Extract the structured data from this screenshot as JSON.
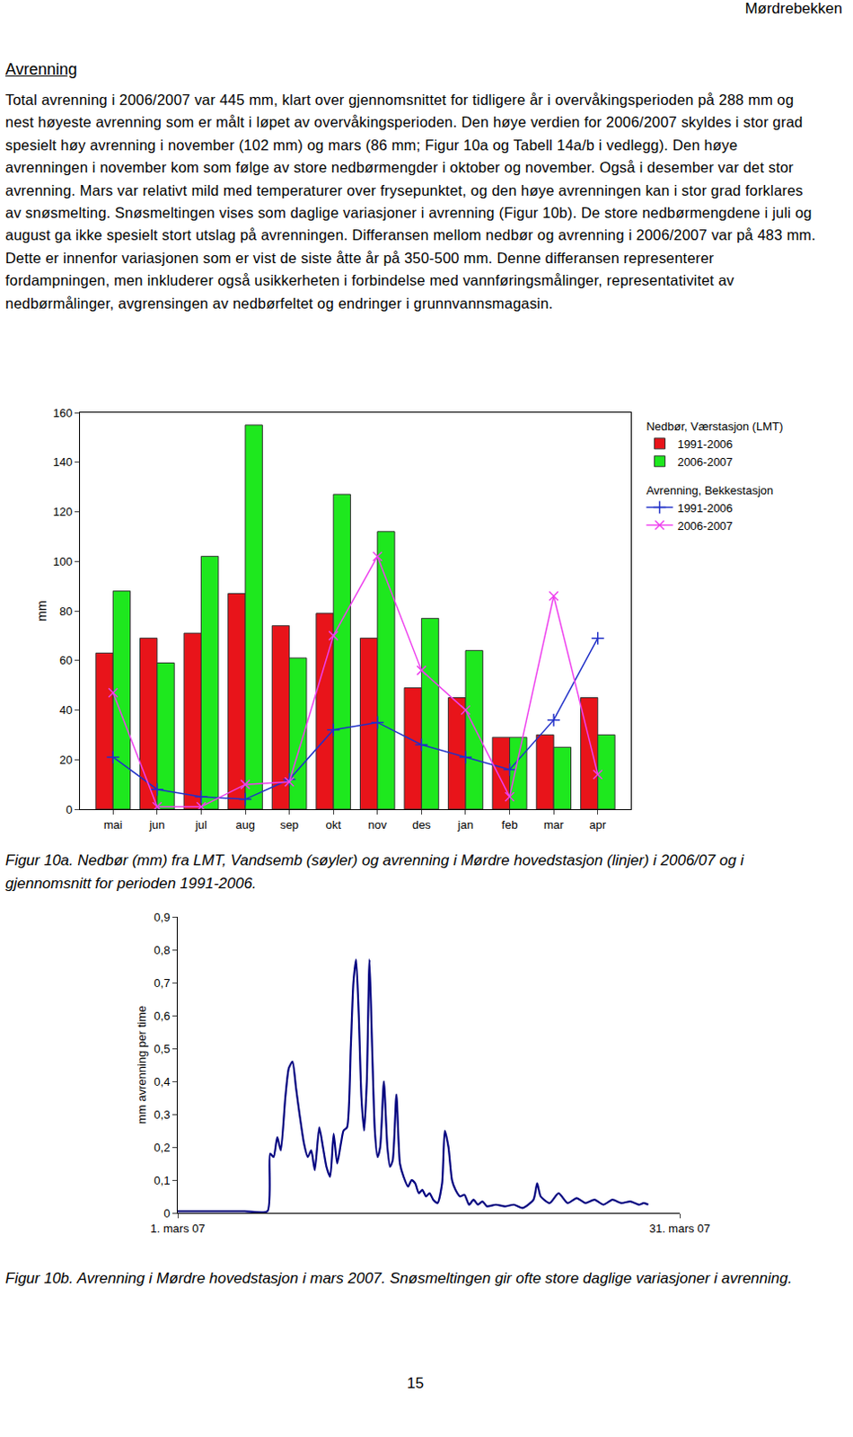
{
  "header": "Mørdrebekken",
  "section_title": "Avrenning",
  "paragraph": "Total avrenning i 2006/2007 var 445 mm, klart over gjennomsnittet for tidligere år i overvåkingsperioden på 288 mm og nest høyeste avrenning som er målt i løpet av overvåkingsperioden. Den høye verdien for 2006/2007 skyldes i stor grad spesielt høy avrenning i november (102 mm) og mars (86 mm; Figur 10a og Tabell 14a/b i vedlegg). Den høye avrenningen i november kom som følge av store nedbørmengder i oktober og november. Også i desember var det stor avrenning. Mars var relativt mild med temperaturer over frysepunktet, og den høye avrenningen kan i stor grad forklares av snøsmelting. Snøsmeltingen vises som daglige variasjoner i avrenning (Figur 10b). De store nedbørmengdene i juli og august ga ikke spesielt stort utslag på avrenningen. Differansen mellom nedbør og avrenning i 2006/2007 var på 483 mm. Dette er innenfor variasjonen som er vist de siste åtte år på 350-500 mm. Denne differansen representerer fordampningen, men inkluderer også usikkerheten i forbindelse med vannføringsmålinger, representativitet av nedbørmålinger, avgrensingen av nedbørfeltet og endringer i grunnvannsmagasin.",
  "chart_data": [
    {
      "type": "bar",
      "caption": "Figur 10a. Nedbør (mm) fra LMT, Vandsemb (søyler) og avrenning i Mørdre hovedstasjon (linjer) i 2006/07 og i gjennomsnitt for perioden 1991-2006.",
      "ylabel": "mm",
      "categories": [
        "mai",
        "jun",
        "jul",
        "aug",
        "sep",
        "okt",
        "nov",
        "des",
        "jan",
        "feb",
        "mar",
        "apr"
      ],
      "series": [
        {
          "name": "1991-2006",
          "group": "Nedbør, Værstasjon (LMT)",
          "type": "bar",
          "color": "#e8141a",
          "values": [
            63,
            69,
            71,
            87,
            74,
            79,
            69,
            49,
            45,
            29,
            30,
            45
          ]
        },
        {
          "name": "2006-2007",
          "group": "Nedbør, Værstasjon (LMT)",
          "type": "bar",
          "color": "#1ee81e",
          "values": [
            88,
            59,
            102,
            155,
            61,
            127,
            112,
            77,
            64,
            29,
            25,
            30
          ]
        },
        {
          "name": "1991-2006",
          "group": "Avrenning, Bekkestasjon",
          "type": "line",
          "color": "#2030c8",
          "marker": "cross-thin",
          "values": [
            21,
            8,
            5,
            4,
            12,
            32,
            35,
            26,
            21,
            16,
            36,
            69
          ]
        },
        {
          "name": "2006-2007",
          "group": "Avrenning, Bekkestasjon",
          "type": "line",
          "color": "#ee40ee",
          "marker": "x-thin",
          "values": [
            47,
            1,
            1,
            10,
            11,
            70,
            102,
            56,
            40,
            5,
            86,
            14
          ]
        }
      ],
      "ylim": [
        0,
        160
      ],
      "yticks": [
        0,
        20,
        40,
        60,
        80,
        100,
        120,
        140,
        160
      ],
      "grid": false,
      "legend": "right"
    },
    {
      "type": "line",
      "caption": "Figur 10b. Avrenning i Mørdre hovedstasjon i mars 2007. Snøsmeltingen gir ofte store daglige variasjoner i avrenning.",
      "ylabel": "mm avrenning per time",
      "color": "#000080",
      "x": [
        1,
        3,
        5,
        6.36,
        6.52,
        6.73,
        6.95,
        7.16,
        7.43,
        7.64,
        7.86,
        8.07,
        8.28,
        8.55,
        8.77,
        8.98,
        9.19,
        9.46,
        9.68,
        9.89,
        10.11,
        10.32,
        10.53,
        10.75,
        10.91,
        11.12,
        11.34,
        11.5,
        11.66,
        11.82,
        11.98,
        12.14,
        12.3,
        12.46,
        12.62,
        12.78,
        12.94,
        13.1,
        13.32,
        13.53,
        13.69,
        13.85,
        14.07,
        14.28,
        14.5,
        14.77,
        14.98,
        15.19,
        15.41,
        15.62,
        15.84,
        16.05,
        16.27,
        16.53,
        16.8,
        16.96,
        17.18,
        17.39,
        17.6,
        17.87,
        18.14,
        18.41,
        18.68,
        18.94,
        19.21,
        19.48,
        20.01,
        20.55,
        21.09,
        21.62,
        22.26,
        22.48,
        22.69,
        23.23,
        23.76,
        24.3,
        24.84,
        25.37,
        25.91,
        26.44,
        26.98,
        27.51,
        28.05,
        28.58,
        28.85,
        29.12
      ],
      "values": [
        0.005,
        0.005,
        0.005,
        0.005,
        0.18,
        0.17,
        0.23,
        0.19,
        0.35,
        0.44,
        0.46,
        0.38,
        0.3,
        0.21,
        0.17,
        0.19,
        0.13,
        0.26,
        0.2,
        0.14,
        0.11,
        0.24,
        0.15,
        0.21,
        0.25,
        0.26,
        0.5,
        0.7,
        0.77,
        0.6,
        0.35,
        0.25,
        0.4,
        0.77,
        0.5,
        0.25,
        0.17,
        0.2,
        0.4,
        0.2,
        0.14,
        0.16,
        0.36,
        0.15,
        0.11,
        0.08,
        0.1,
        0.09,
        0.06,
        0.07,
        0.05,
        0.06,
        0.04,
        0.03,
        0.09,
        0.25,
        0.2,
        0.1,
        0.07,
        0.05,
        0.055,
        0.025,
        0.04,
        0.025,
        0.035,
        0.02,
        0.025,
        0.02,
        0.025,
        0.015,
        0.04,
        0.09,
        0.05,
        0.03,
        0.06,
        0.03,
        0.045,
        0.03,
        0.04,
        0.025,
        0.04,
        0.03,
        0.035,
        0.025,
        0.03,
        0.025
      ],
      "xlim": [
        1,
        31
      ],
      "xticks": [
        {
          "value": 1,
          "label": "1. mars 07"
        },
        {
          "value": 31,
          "label": "31. mars 07"
        }
      ],
      "ylim": [
        0,
        0.9
      ],
      "yticks": [
        0,
        {
          "value": 0.1,
          "label": "0,1"
        },
        {
          "value": 0.2,
          "label": "0,2"
        },
        {
          "value": 0.3,
          "label": "0,3"
        },
        {
          "value": 0.4,
          "label": "0,4"
        },
        {
          "value": 0.5,
          "label": "0,5"
        },
        {
          "value": 0.6,
          "label": "0,6"
        },
        {
          "value": 0.7,
          "label": "0,7"
        },
        {
          "value": 0.8,
          "label": "0,8"
        },
        {
          "value": 0.9,
          "label": "0,9"
        }
      ],
      "grid": false
    }
  ],
  "page_number": "15"
}
